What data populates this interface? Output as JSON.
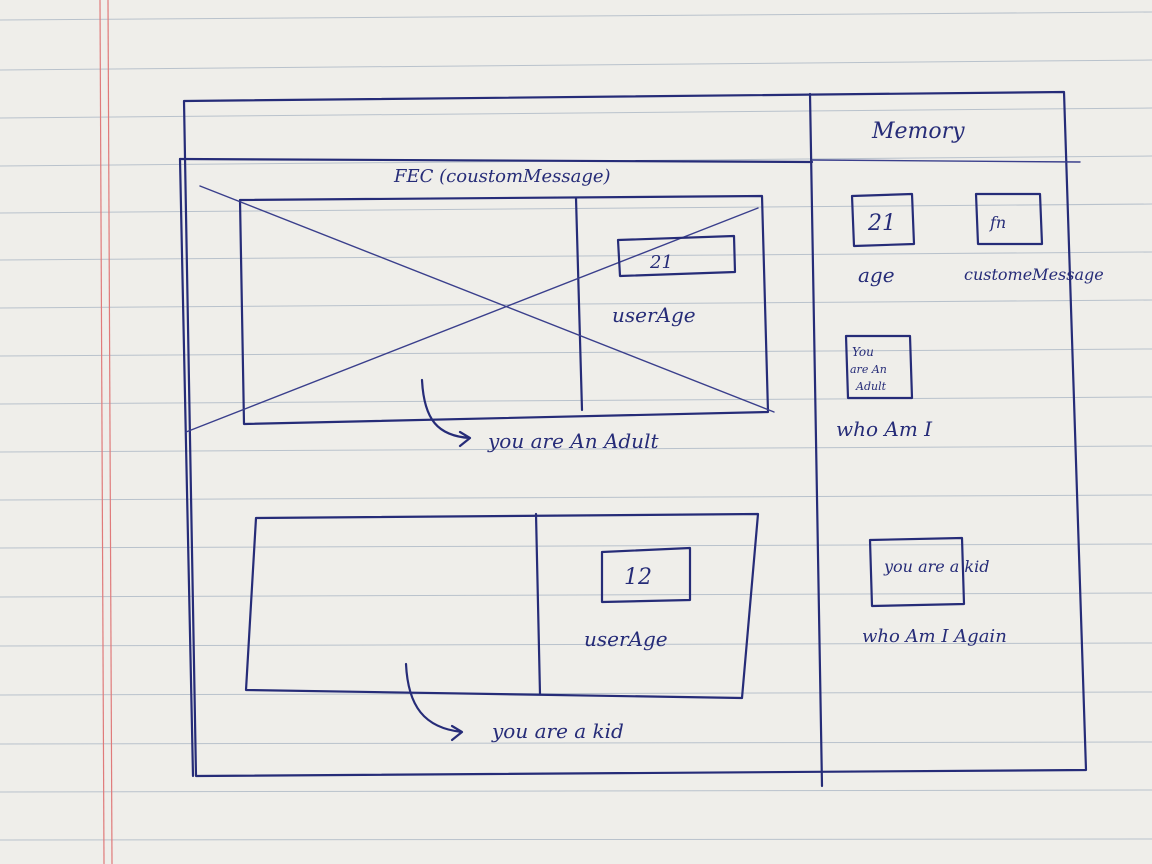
{
  "memory": {
    "title": "Memory",
    "age": {
      "value": "21",
      "label": "age"
    },
    "custom_message": {
      "value": "fn",
      "label": "customeMessage"
    },
    "who_am_i": {
      "value_lines": [
        "You",
        "are An",
        "Adult"
      ],
      "label": "who Am I"
    },
    "who_am_i_again": {
      "value": "you are a kid",
      "label": "who Am I Again"
    }
  },
  "fec": {
    "title": "FEC (coustomMessage)",
    "first_call": {
      "value": "21",
      "label": "userAge",
      "result": "you are An Adult"
    },
    "second_call": {
      "value": "12",
      "label": "userAge",
      "result": "you are a kid"
    }
  },
  "colors": {
    "ink": "#262c78",
    "paper": "#efeeea",
    "rule": "#b9c2cc",
    "margin": "#e07a7a"
  }
}
